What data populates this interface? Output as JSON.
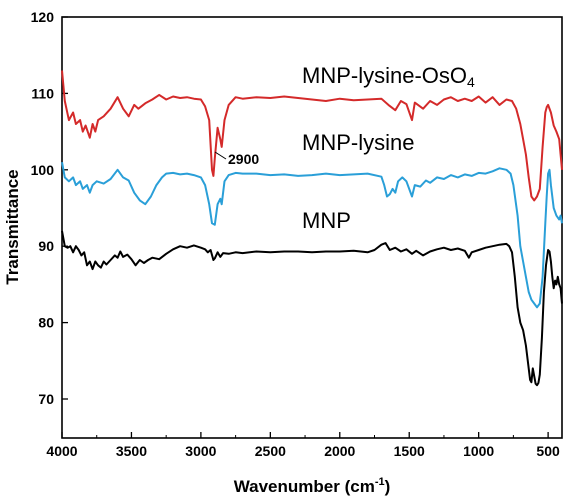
{
  "chart_data": {
    "type": "line",
    "xlabel": "Wavenumber (cm",
    "xlabel_sup": "-1",
    "xlabel_end": ")",
    "ylabel": "Transmittance",
    "xlim": [
      4000,
      400
    ],
    "ylim": [
      65,
      120
    ],
    "x_ticks": [
      4000,
      3500,
      3000,
      2500,
      2000,
      1500,
      1000,
      500
    ],
    "y_ticks": [
      70,
      80,
      90,
      100,
      110,
      120
    ],
    "annotation": {
      "text": "2900",
      "x": 2900
    },
    "series": [
      {
        "name": "MNP-lysine-OsO",
        "name_sub": "4",
        "color": "#d42a2a",
        "points": [
          [
            4000,
            113
          ],
          [
            3980,
            109
          ],
          [
            3950,
            106.5
          ],
          [
            3920,
            107.5
          ],
          [
            3900,
            106
          ],
          [
            3870,
            106.5
          ],
          [
            3850,
            105
          ],
          [
            3830,
            105.8
          ],
          [
            3800,
            104.2
          ],
          [
            3780,
            106
          ],
          [
            3760,
            105
          ],
          [
            3740,
            106.5
          ],
          [
            3700,
            107
          ],
          [
            3650,
            108
          ],
          [
            3600,
            109.5
          ],
          [
            3560,
            108
          ],
          [
            3520,
            107
          ],
          [
            3480,
            108.5
          ],
          [
            3450,
            108
          ],
          [
            3400,
            108.7
          ],
          [
            3350,
            109.2
          ],
          [
            3300,
            109.8
          ],
          [
            3250,
            109.2
          ],
          [
            3200,
            109.6
          ],
          [
            3150,
            109.4
          ],
          [
            3100,
            109.5
          ],
          [
            3050,
            109.3
          ],
          [
            3000,
            109.2
          ],
          [
            2970,
            108.3
          ],
          [
            2940,
            106.5
          ],
          [
            2920,
            100
          ],
          [
            2910,
            99.2
          ],
          [
            2900,
            101.5
          ],
          [
            2880,
            105.5
          ],
          [
            2860,
            104
          ],
          [
            2850,
            103
          ],
          [
            2830,
            106.5
          ],
          [
            2800,
            108.5
          ],
          [
            2750,
            109.5
          ],
          [
            2700,
            109.3
          ],
          [
            2600,
            109.5
          ],
          [
            2500,
            109.4
          ],
          [
            2400,
            109.6
          ],
          [
            2300,
            109.4
          ],
          [
            2200,
            109.2
          ],
          [
            2100,
            109
          ],
          [
            2000,
            109.3
          ],
          [
            1900,
            109.1
          ],
          [
            1800,
            109.2
          ],
          [
            1700,
            109.3
          ],
          [
            1650,
            108.5
          ],
          [
            1600,
            107.8
          ],
          [
            1560,
            109
          ],
          [
            1520,
            108.6
          ],
          [
            1480,
            106.5
          ],
          [
            1460,
            108.8
          ],
          [
            1400,
            108
          ],
          [
            1350,
            109
          ],
          [
            1300,
            108.5
          ],
          [
            1250,
            109.2
          ],
          [
            1200,
            109.5
          ],
          [
            1150,
            109
          ],
          [
            1100,
            109.3
          ],
          [
            1050,
            109
          ],
          [
            1000,
            109.6
          ],
          [
            950,
            108.8
          ],
          [
            900,
            109.5
          ],
          [
            850,
            108.5
          ],
          [
            800,
            109.2
          ],
          [
            760,
            109
          ],
          [
            730,
            108
          ],
          [
            700,
            106
          ],
          [
            680,
            104
          ],
          [
            660,
            102
          ],
          [
            640,
            99
          ],
          [
            620,
            96.5
          ],
          [
            600,
            96
          ],
          [
            580,
            96.5
          ],
          [
            560,
            97.5
          ],
          [
            540,
            103
          ],
          [
            520,
            107.5
          ],
          [
            510,
            108.2
          ],
          [
            500,
            108.5
          ],
          [
            480,
            107.5
          ],
          [
            460,
            105.8
          ],
          [
            440,
            105
          ],
          [
            420,
            104
          ],
          [
            410,
            102
          ],
          [
            400,
            100
          ]
        ]
      },
      {
        "name": "MNP-lysine",
        "color": "#2a9fd8",
        "points": [
          [
            4000,
            101
          ],
          [
            3980,
            99
          ],
          [
            3950,
            98.5
          ],
          [
            3920,
            99
          ],
          [
            3900,
            98
          ],
          [
            3870,
            98.5
          ],
          [
            3850,
            97.5
          ],
          [
            3820,
            98
          ],
          [
            3800,
            97
          ],
          [
            3780,
            98
          ],
          [
            3750,
            98.5
          ],
          [
            3700,
            98.2
          ],
          [
            3650,
            98.8
          ],
          [
            3600,
            100
          ],
          [
            3560,
            99
          ],
          [
            3520,
            98.6
          ],
          [
            3480,
            97
          ],
          [
            3440,
            96
          ],
          [
            3400,
            95.5
          ],
          [
            3360,
            96.5
          ],
          [
            3320,
            98
          ],
          [
            3280,
            99
          ],
          [
            3250,
            99.5
          ],
          [
            3200,
            99.6
          ],
          [
            3150,
            99.4
          ],
          [
            3100,
            99.5
          ],
          [
            3050,
            99.3
          ],
          [
            3000,
            99
          ],
          [
            2970,
            98
          ],
          [
            2940,
            95.5
          ],
          [
            2920,
            93
          ],
          [
            2900,
            92.8
          ],
          [
            2880,
            95.5
          ],
          [
            2860,
            96.2
          ],
          [
            2850,
            95.5
          ],
          [
            2830,
            98.5
          ],
          [
            2800,
            99.3
          ],
          [
            2750,
            99.6
          ],
          [
            2700,
            99.5
          ],
          [
            2600,
            99.5
          ],
          [
            2500,
            99.3
          ],
          [
            2400,
            99.4
          ],
          [
            2300,
            99.2
          ],
          [
            2200,
            99.3
          ],
          [
            2100,
            99.5
          ],
          [
            2000,
            99.3
          ],
          [
            1900,
            99.4
          ],
          [
            1800,
            99.5
          ],
          [
            1700,
            99.1
          ],
          [
            1680,
            98
          ],
          [
            1660,
            96.5
          ],
          [
            1640,
            96.8
          ],
          [
            1620,
            97.5
          ],
          [
            1600,
            97
          ],
          [
            1580,
            98.5
          ],
          [
            1550,
            99
          ],
          [
            1520,
            98.5
          ],
          [
            1480,
            96.5
          ],
          [
            1460,
            98
          ],
          [
            1420,
            97.8
          ],
          [
            1380,
            98.6
          ],
          [
            1350,
            98.3
          ],
          [
            1300,
            99
          ],
          [
            1250,
            98.8
          ],
          [
            1200,
            99.3
          ],
          [
            1150,
            99
          ],
          [
            1100,
            99.4
          ],
          [
            1050,
            99.2
          ],
          [
            1000,
            99.6
          ],
          [
            950,
            99.5
          ],
          [
            900,
            99.8
          ],
          [
            850,
            100.2
          ],
          [
            800,
            100
          ],
          [
            770,
            99.5
          ],
          [
            750,
            98
          ],
          [
            720,
            94
          ],
          [
            700,
            90
          ],
          [
            680,
            88
          ],
          [
            660,
            86
          ],
          [
            640,
            84
          ],
          [
            620,
            83
          ],
          [
            600,
            82.5
          ],
          [
            580,
            82
          ],
          [
            560,
            82.5
          ],
          [
            540,
            86
          ],
          [
            520,
            93
          ],
          [
            510,
            96.5
          ],
          [
            500,
            99.5
          ],
          [
            490,
            100
          ],
          [
            480,
            98
          ],
          [
            460,
            95
          ],
          [
            440,
            94
          ],
          [
            420,
            93.5
          ],
          [
            410,
            94
          ],
          [
            400,
            93
          ]
        ]
      },
      {
        "name": "MNP",
        "color": "#000000",
        "points": [
          [
            4000,
            92
          ],
          [
            3980,
            90
          ],
          [
            3960,
            89.8
          ],
          [
            3940,
            90
          ],
          [
            3920,
            89.2
          ],
          [
            3900,
            90
          ],
          [
            3880,
            89.5
          ],
          [
            3860,
            88.8
          ],
          [
            3840,
            89.2
          ],
          [
            3820,
            87.5
          ],
          [
            3800,
            88
          ],
          [
            3780,
            87
          ],
          [
            3760,
            88
          ],
          [
            3740,
            87.5
          ],
          [
            3720,
            87.2
          ],
          [
            3700,
            88
          ],
          [
            3680,
            87.6
          ],
          [
            3650,
            88.2
          ],
          [
            3620,
            88.8
          ],
          [
            3600,
            88.5
          ],
          [
            3580,
            89.3
          ],
          [
            3560,
            88.6
          ],
          [
            3530,
            88.9
          ],
          [
            3500,
            88.3
          ],
          [
            3470,
            87.5
          ],
          [
            3440,
            88.2
          ],
          [
            3410,
            87.8
          ],
          [
            3380,
            88.2
          ],
          [
            3350,
            88.5
          ],
          [
            3300,
            88.3
          ],
          [
            3250,
            89
          ],
          [
            3200,
            89.6
          ],
          [
            3150,
            90
          ],
          [
            3100,
            89.8
          ],
          [
            3050,
            90.1
          ],
          [
            3000,
            89.8
          ],
          [
            2970,
            89.6
          ],
          [
            2950,
            89.2
          ],
          [
            2930,
            89.5
          ],
          [
            2910,
            88.2
          ],
          [
            2900,
            88.4
          ],
          [
            2880,
            89.2
          ],
          [
            2860,
            88.6
          ],
          [
            2840,
            89.1
          ],
          [
            2800,
            89
          ],
          [
            2750,
            89.2
          ],
          [
            2700,
            89.1
          ],
          [
            2600,
            89.3
          ],
          [
            2500,
            89.2
          ],
          [
            2400,
            89.3
          ],
          [
            2300,
            89.3
          ],
          [
            2200,
            89.2
          ],
          [
            2100,
            89.3
          ],
          [
            2000,
            89.3
          ],
          [
            1900,
            89.4
          ],
          [
            1800,
            89.2
          ],
          [
            1750,
            89.5
          ],
          [
            1700,
            90.2
          ],
          [
            1670,
            90.4
          ],
          [
            1640,
            89.5
          ],
          [
            1600,
            89.8
          ],
          [
            1560,
            89.3
          ],
          [
            1520,
            89.6
          ],
          [
            1480,
            89
          ],
          [
            1450,
            89.4
          ],
          [
            1400,
            88.8
          ],
          [
            1350,
            89.3
          ],
          [
            1300,
            89.6
          ],
          [
            1250,
            89.8
          ],
          [
            1200,
            89.5
          ],
          [
            1150,
            89.7
          ],
          [
            1100,
            89.4
          ],
          [
            1070,
            88.5
          ],
          [
            1050,
            89.2
          ],
          [
            1000,
            89.5
          ],
          [
            950,
            89.8
          ],
          [
            900,
            90
          ],
          [
            850,
            90.2
          ],
          [
            800,
            90.3
          ],
          [
            780,
            90
          ],
          [
            760,
            89.2
          ],
          [
            740,
            86
          ],
          [
            720,
            82
          ],
          [
            700,
            80
          ],
          [
            680,
            79
          ],
          [
            660,
            77
          ],
          [
            640,
            74
          ],
          [
            630,
            72.5
          ],
          [
            620,
            72.2
          ],
          [
            610,
            74
          ],
          [
            600,
            73
          ],
          [
            590,
            72
          ],
          [
            580,
            71.8
          ],
          [
            570,
            72.1
          ],
          [
            560,
            73.2
          ],
          [
            545,
            78
          ],
          [
            530,
            84
          ],
          [
            515,
            87.5
          ],
          [
            500,
            89.5
          ],
          [
            490,
            89.3
          ],
          [
            480,
            88
          ],
          [
            470,
            86
          ],
          [
            460,
            84.5
          ],
          [
            450,
            85.5
          ],
          [
            440,
            85
          ],
          [
            430,
            86
          ],
          [
            420,
            85
          ],
          [
            410,
            84.5
          ],
          [
            400,
            82.5
          ]
        ]
      }
    ]
  }
}
